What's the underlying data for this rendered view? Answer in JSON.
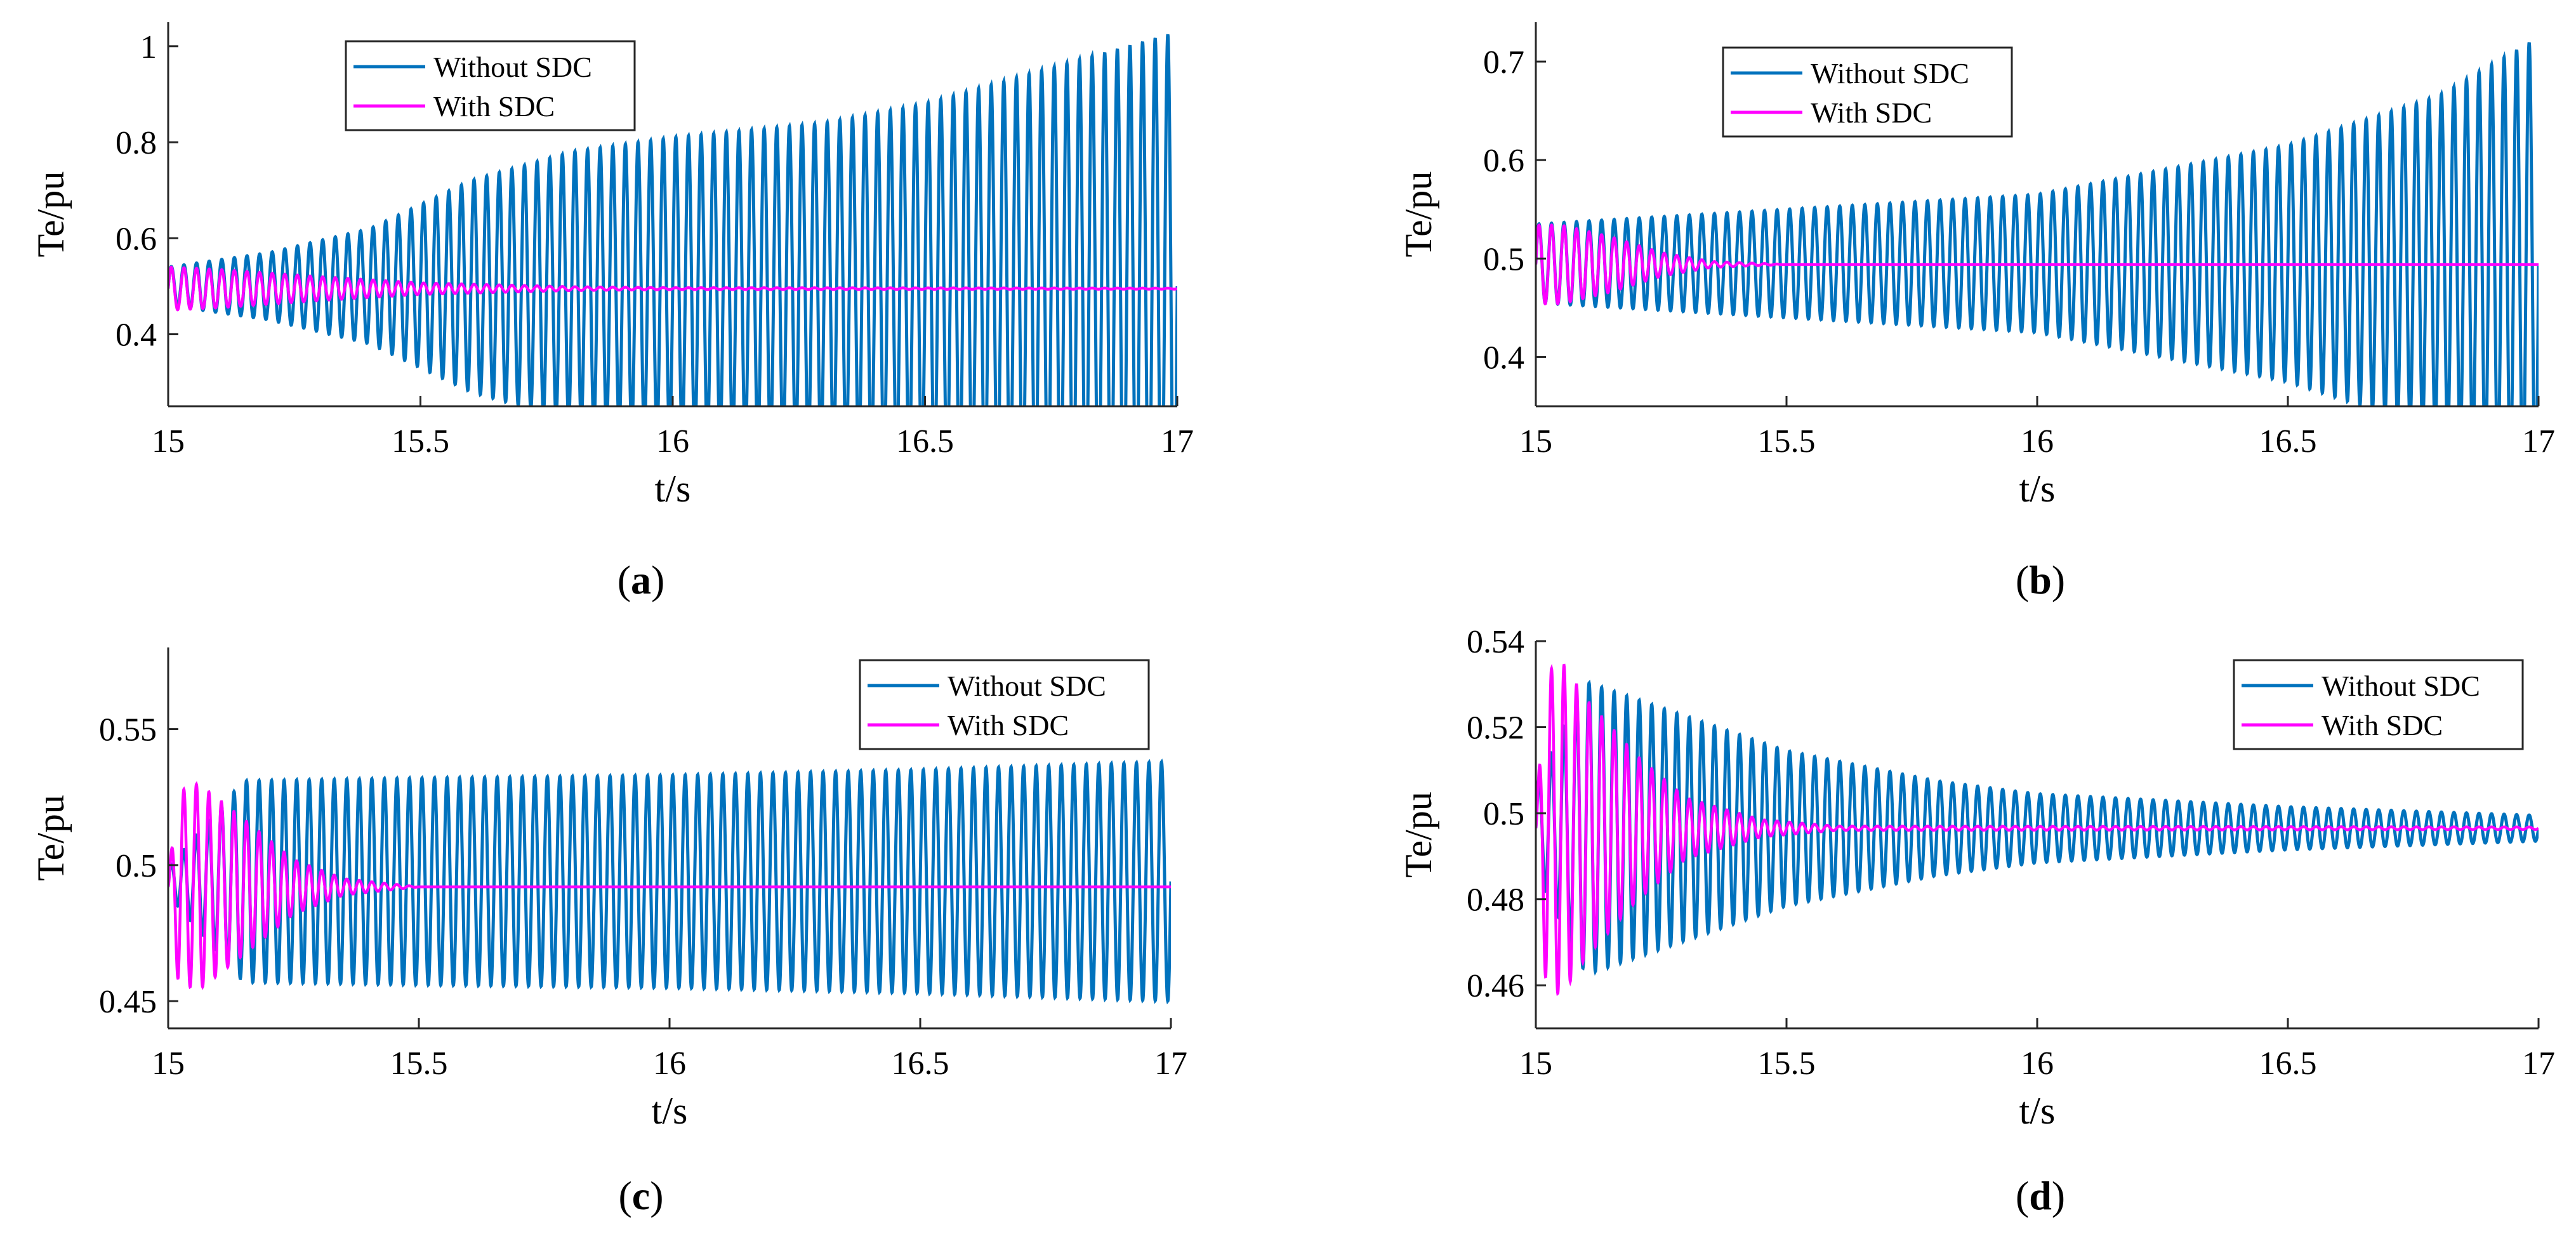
{
  "chart_data": [
    {
      "id": "a",
      "type": "line",
      "caption": "(a)",
      "xlabel": "t/s",
      "ylabel": "Te/pu",
      "xlim": [
        15,
        17
      ],
      "ylim": [
        0.25,
        1.05
      ],
      "xticks": [
        15,
        15.5,
        16,
        16.5,
        17
      ],
      "xtick_labels": [
        "15",
        "15.5",
        "16",
        "16.5",
        "17"
      ],
      "yticks": [
        0.4,
        0.6,
        0.8,
        1
      ],
      "ytick_labels": [
        "0.4",
        "0.6",
        "0.8",
        "1"
      ],
      "legend_position": "top-center",
      "oscillation_hz": 40,
      "series": [
        {
          "name": "Without SDC",
          "color": "#0072BD",
          "mean": 0.5,
          "envelope_t": [
            15.0,
            15.2,
            15.4,
            15.5,
            15.6,
            15.8,
            16.0,
            16.3,
            16.5,
            16.8,
            17.0
          ],
          "envelope_amp": [
            0.04,
            0.07,
            0.12,
            0.17,
            0.22,
            0.28,
            0.31,
            0.34,
            0.38,
            0.47,
            0.53
          ]
        },
        {
          "name": "With SDC",
          "color": "#FF00FF",
          "mean": 0.495,
          "envelope_t": [
            15.0,
            15.1,
            15.3,
            15.5,
            15.8,
            16.0,
            17.0
          ],
          "envelope_amp": [
            0.045,
            0.04,
            0.025,
            0.012,
            0.004,
            0.002,
            0.001
          ]
        }
      ]
    },
    {
      "id": "b",
      "type": "line",
      "caption": "(b)",
      "xlabel": "t/s",
      "ylabel": "Te/pu",
      "xlim": [
        15,
        17
      ],
      "ylim": [
        0.35,
        0.74
      ],
      "xticks": [
        15,
        15.5,
        16,
        16.5,
        17
      ],
      "xtick_labels": [
        "15",
        "15.5",
        "16",
        "16.5",
        "17"
      ],
      "yticks": [
        0.4,
        0.5,
        0.6,
        0.7
      ],
      "ytick_labels": [
        "0.4",
        "0.5",
        "0.6",
        "0.7"
      ],
      "legend_position": "top-center",
      "oscillation_hz": 40,
      "series": [
        {
          "name": "Without SDC",
          "color": "#0072BD",
          "mean": 0.495,
          "envelope_t": [
            15.0,
            15.5,
            16.0,
            16.5,
            16.8,
            17.0
          ],
          "envelope_amp": [
            0.04,
            0.055,
            0.07,
            0.12,
            0.17,
            0.23
          ]
        },
        {
          "name": "With SDC",
          "color": "#FF00FF",
          "mean": 0.494,
          "envelope_t": [
            15.0,
            15.05,
            15.15,
            15.25,
            15.35,
            15.5,
            17.0
          ],
          "envelope_amp": [
            0.04,
            0.04,
            0.028,
            0.012,
            0.003,
            0.0,
            0.0
          ]
        }
      ]
    },
    {
      "id": "c",
      "type": "line",
      "caption": "(c)",
      "xlabel": "t/s",
      "ylabel": "Te/pu",
      "xlim": [
        15,
        17
      ],
      "ylim": [
        0.44,
        0.58
      ],
      "xticks": [
        15,
        15.5,
        16,
        16.5,
        17
      ],
      "xtick_labels": [
        "15",
        "15.5",
        "16",
        "16.5",
        "17"
      ],
      "yticks": [
        0.45,
        0.5,
        0.55
      ],
      "ytick_labels": [
        "0.45",
        "0.5",
        "0.55"
      ],
      "legend_position": "top-right",
      "oscillation_hz": 40,
      "series": [
        {
          "name": "Without SDC",
          "color": "#0072BD",
          "mean": 0.494,
          "envelope_t": [
            15.0,
            15.15,
            15.5,
            16.0,
            16.5,
            17.0
          ],
          "envelope_amp": [
            0.005,
            0.037,
            0.038,
            0.039,
            0.041,
            0.044
          ]
        },
        {
          "name": "With SDC",
          "color": "#FF00FF",
          "mean": 0.492,
          "envelope_t": [
            15.0,
            15.02,
            15.06,
            15.15,
            15.25,
            15.35,
            15.5,
            17.0
          ],
          "envelope_amp": [
            0.003,
            0.035,
            0.038,
            0.025,
            0.01,
            0.003,
            0.0,
            0.0
          ]
        }
      ]
    },
    {
      "id": "d",
      "type": "line",
      "caption": "(d)",
      "xlabel": "t/s",
      "ylabel": "Te/pu",
      "xlim": [
        15,
        17
      ],
      "ylim": [
        0.45,
        0.54
      ],
      "xticks": [
        15,
        15.5,
        16,
        16.5,
        17
      ],
      "xtick_labels": [
        "15",
        "15.5",
        "16",
        "16.5",
        "17"
      ],
      "yticks": [
        0.46,
        0.48,
        0.5,
        0.52,
        0.54
      ],
      "ytick_labels": [
        "0.46",
        "0.48",
        "0.5",
        "0.52",
        "0.54"
      ],
      "legend_position": "top-right",
      "oscillation_hz": 40,
      "series": [
        {
          "name": "Without SDC",
          "color": "#0072BD",
          "mean": 0.4965,
          "envelope_t": [
            15.0,
            15.1,
            15.3,
            15.5,
            15.8,
            16.0,
            16.5,
            17.0
          ],
          "envelope_amp": [
            0.01,
            0.034,
            0.026,
            0.018,
            0.011,
            0.008,
            0.005,
            0.003
          ]
        },
        {
          "name": "With SDC",
          "color": "#FF00FF",
          "mean": 0.4965,
          "envelope_t": [
            15.0,
            15.02,
            15.05,
            15.1,
            15.2,
            15.3,
            15.45,
            15.6,
            17.0
          ],
          "envelope_amp": [
            0.003,
            0.036,
            0.039,
            0.03,
            0.017,
            0.007,
            0.002,
            0.0005,
            0.0003
          ]
        }
      ]
    }
  ]
}
